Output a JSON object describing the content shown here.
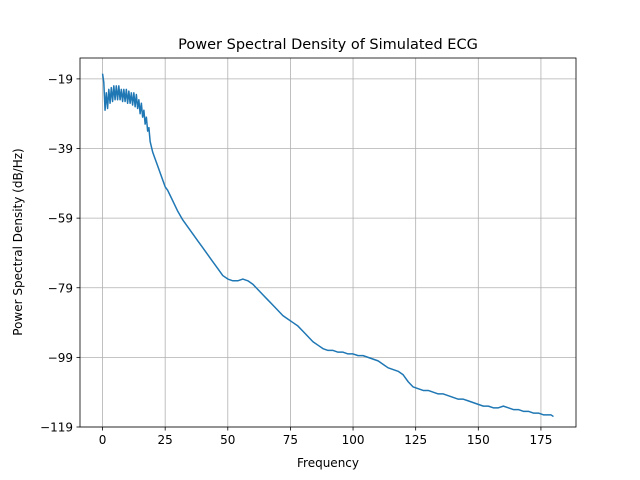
{
  "chart_data": {
    "type": "line",
    "title": "Power Spectral Density of Simulated ECG",
    "xlabel": "Frequency",
    "ylabel": "Power Spectral Density (dB/Hz)",
    "xlim": [
      -9,
      189
    ],
    "ylim": [
      -119,
      -13
    ],
    "xticks": [
      0,
      25,
      50,
      75,
      100,
      125,
      150,
      175
    ],
    "yticks": [
      -119,
      -99,
      -79,
      -59,
      -39,
      -19
    ],
    "grid": true,
    "line_color": "#1f77b4",
    "series": [
      {
        "x": [
          0,
          0.5,
          1,
          1.5,
          2,
          2.5,
          3,
          3.5,
          4,
          4.5,
          5,
          5.5,
          6,
          6.5,
          7,
          7.5,
          8,
          8.5,
          9,
          9.5,
          10,
          10.5,
          11,
          11.5,
          12,
          12.5,
          13,
          13.5,
          14,
          14.5,
          15,
          15.5,
          16,
          16.5,
          17,
          17.5,
          18,
          18.5,
          19,
          20,
          21,
          22,
          23,
          24,
          25,
          26,
          27,
          28,
          30,
          32,
          34,
          36,
          38,
          40,
          42,
          44,
          46,
          48,
          50,
          52,
          54,
          56,
          58,
          60,
          62,
          64,
          66,
          68,
          70,
          72,
          74,
          76,
          78,
          80,
          82,
          84,
          86,
          88,
          90,
          92,
          94,
          96,
          98,
          100,
          102,
          104,
          106,
          108,
          110,
          112,
          114,
          116,
          118,
          120,
          122,
          124,
          126,
          128,
          130,
          132,
          134,
          136,
          138,
          140,
          142,
          144,
          146,
          148,
          150,
          152,
          154,
          156,
          158,
          160,
          162,
          164,
          166,
          168,
          170,
          172,
          174,
          176,
          178,
          179,
          180
        ],
        "y": [
          -17.5,
          -20,
          -28,
          -23,
          -27.5,
          -22,
          -26,
          -21.5,
          -25.5,
          -21,
          -25,
          -21,
          -25,
          -21,
          -25,
          -22,
          -25.5,
          -22,
          -25.5,
          -22,
          -26,
          -22.5,
          -26,
          -23,
          -26.5,
          -23,
          -27,
          -23.5,
          -27.5,
          -25,
          -29,
          -26,
          -30,
          -28,
          -32,
          -30,
          -34,
          -33,
          -37,
          -40,
          -42,
          -44,
          -46,
          -48,
          -50,
          -51,
          -52.5,
          -54,
          -57,
          -59.5,
          -61.5,
          -63.5,
          -65.5,
          -67.5,
          -69.5,
          -71.5,
          -73.5,
          -75.5,
          -76.5,
          -77,
          -77,
          -76.5,
          -77,
          -78,
          -79.5,
          -81,
          -82.5,
          -84,
          -85.5,
          -87,
          -88,
          -89,
          -90,
          -91.5,
          -93,
          -94.5,
          -95.5,
          -96.5,
          -97,
          -97,
          -97.5,
          -97.5,
          -98,
          -98,
          -98.5,
          -98.5,
          -99,
          -99.5,
          -100,
          -101,
          -102,
          -102.5,
          -103,
          -104,
          -106,
          -107.5,
          -108,
          -108.5,
          -108.5,
          -109,
          -109.5,
          -109.5,
          -110,
          -110.5,
          -111,
          -111,
          -111.5,
          -112,
          -112.5,
          -113,
          -113,
          -113.5,
          -113.5,
          -113,
          -113.5,
          -114,
          -114,
          -114.5,
          -114.5,
          -115,
          -115,
          -115.5,
          -115.5,
          -115.5,
          -116
        ]
      }
    ]
  }
}
